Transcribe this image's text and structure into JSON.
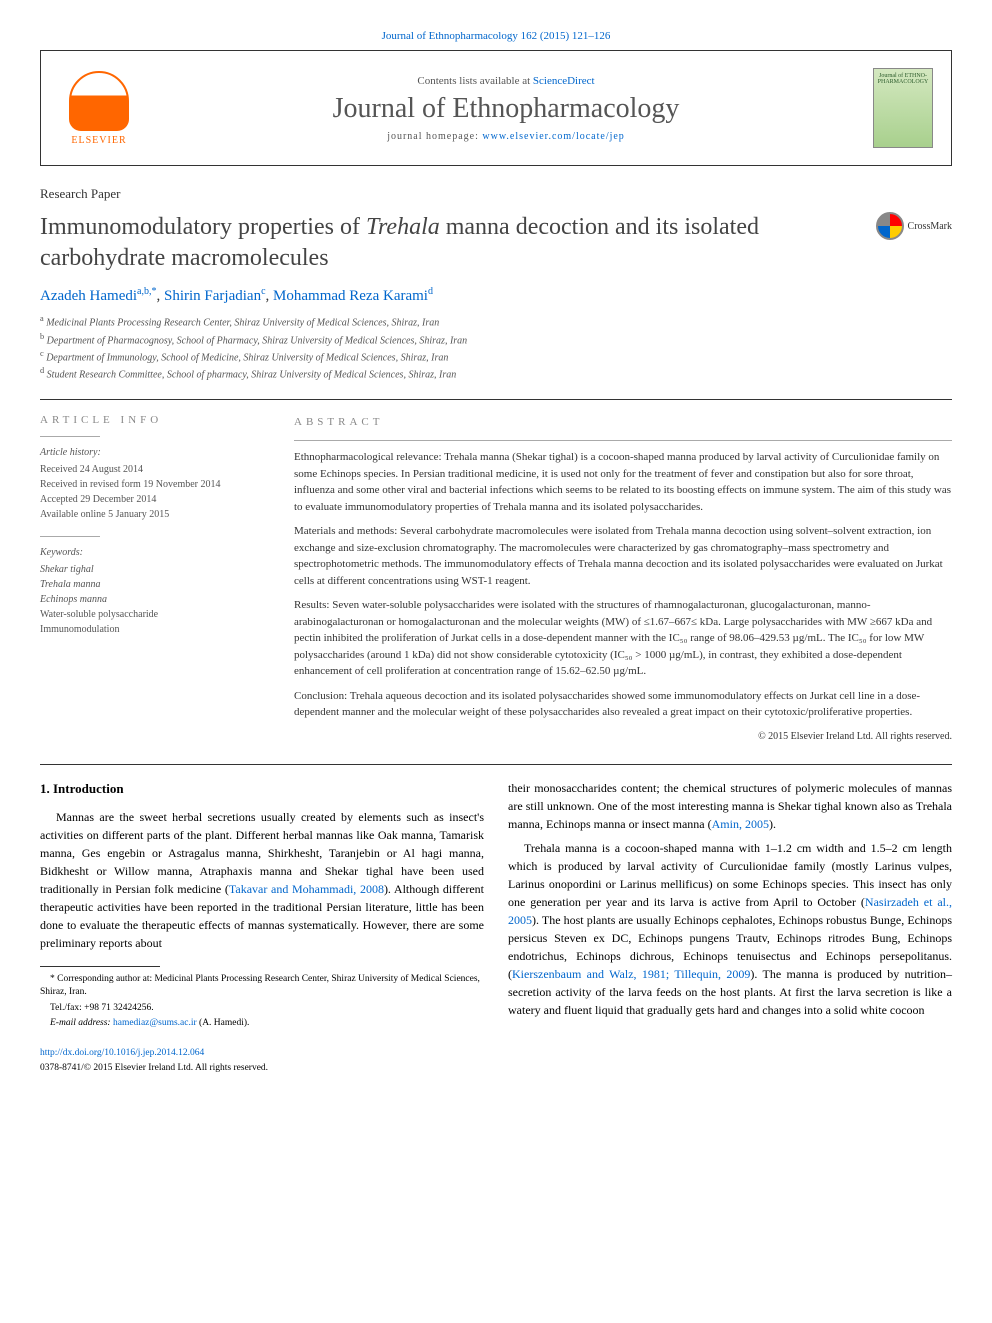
{
  "top_citation": "Journal of Ethnopharmacology 162 (2015) 121–126",
  "header": {
    "contents_prefix": "Contents lists available at ",
    "contents_link": "ScienceDirect",
    "journal_name": "Journal of Ethnopharmacology",
    "homepage_prefix": "journal homepage: ",
    "homepage_link": "www.elsevier.com/locate/jep",
    "publisher": "ELSEVIER",
    "cover_text": "Journal of ETHNO-PHARMACOLOGY"
  },
  "paper_type": "Research Paper",
  "title_html": "Immunomodulatory properties of <em>Trehala</em> manna decoction and its isolated carbohydrate macromolecules",
  "crossmark_label": "CrossMark",
  "authors": {
    "a1_name": "Azadeh Hamedi",
    "a1_sup": "a,b,*",
    "a2_name": "Shirin Farjadian",
    "a2_sup": "c",
    "a3_name": "Mohammad Reza Karami",
    "a3_sup": "d"
  },
  "affiliations": {
    "a": "Medicinal Plants Processing Research Center, Shiraz University of Medical Sciences, Shiraz, Iran",
    "b": "Department of Pharmacognosy, School of Pharmacy, Shiraz University of Medical Sciences, Shiraz, Iran",
    "c": "Department of Immunology, School of Medicine, Shiraz University of Medical Sciences, Shiraz, Iran",
    "d": "Student Research Committee, School of pharmacy, Shiraz University of Medical Sciences, Shiraz, Iran"
  },
  "article_info": {
    "label": "ARTICLE INFO",
    "history_heading": "Article history:",
    "received": "Received 24 August 2014",
    "revised": "Received in revised form 19 November 2014",
    "accepted": "Accepted 29 December 2014",
    "online": "Available online 5 January 2015",
    "keywords_heading": "Keywords:",
    "keywords": [
      "Shekar tighal",
      "Trehala manna",
      "Echinops manna",
      "Water-soluble polysaccharide",
      "Immunomodulation"
    ]
  },
  "abstract": {
    "label": "ABSTRACT",
    "p1": "Ethnopharmacological relevance: Trehala manna (Shekar tighal) is a cocoon-shaped manna produced by larval activity of Curculionidae family on some Echinops species. In Persian traditional medicine, it is used not only for the treatment of fever and constipation but also for sore throat, influenza and some other viral and bacterial infections which seems to be related to its boosting effects on immune system. The aim of this study was to evaluate immunomodulatory properties of Trehala manna and its isolated polysaccharides.",
    "p2": "Materials and methods: Several carbohydrate macromolecules were isolated from Trehala manna decoction using solvent–solvent extraction, ion exchange and size-exclusion chromatography. The macromolecules were characterized by gas chromatography–mass spectrometry and spectrophotometric methods. The immunomodulatory effects of Trehala manna decoction and its isolated polysaccharides were evaluated on Jurkat cells at different concentrations using WST-1 reagent.",
    "p3": "Results: Seven water-soluble polysaccharides were isolated with the structures of rhamnogalacturonan, glucogalacturonan, manno-arabinogalacturonan or homogalacturonan and the molecular weights (MW) of ≤1.67–667≤ kDa. Large polysaccharides with MW ≥667 kDa and pectin inhibited the proliferation of Jurkat cells in a dose-dependent manner with the IC₅₀ range of 98.06–429.53 µg/mL. The IC₅₀ for low MW polysaccharides (around 1 kDa) did not show considerable cytotoxicity (IC₅₀ > 1000 µg/mL), in contrast, they exhibited a dose-dependent enhancement of cell proliferation at concentration range of 15.62–62.50 µg/mL.",
    "p4": "Conclusion: Trehala aqueous decoction and its isolated polysaccharides showed some immunomodulatory effects on Jurkat cell line in a dose-dependent manner and the molecular weight of these polysaccharides also revealed a great impact on their cytotoxic/proliferative properties.",
    "copyright": "© 2015 Elsevier Ireland Ltd. All rights reserved."
  },
  "body": {
    "intro_heading": "1. Introduction",
    "left_p1_pre": "Mannas are the sweet herbal secretions usually created by elements such as insect's activities on different parts of the plant. Different herbal mannas like Oak manna, Tamarisk manna, Ges engebin or Astragalus manna, Shirkhesht, Taranjebin or Al hagi manna, Bidkhesht or Willow manna, Atraphaxis manna and Shekar tighal have been used traditionally in Persian folk medicine (",
    "left_p1_link": "Takavar and Mohammadi, 2008",
    "left_p1_post": "). Although different therapeutic activities have been reported in the traditional Persian literature, little has been done to evaluate the therapeutic effects of mannas systematically. However, there are some preliminary reports about",
    "right_p1_pre": "their monosaccharides content; the chemical structures of polymeric molecules of mannas are still unknown. One of the most interesting manna is Shekar tighal known also as Trehala manna, Echinops manna or insect manna (",
    "right_p1_link": "Amin, 2005",
    "right_p1_post": ").",
    "right_p2_pre": "Trehala manna is a cocoon-shaped manna with 1–1.2 cm width and 1.5–2 cm length which is produced by larval activity of Curculionidae family (mostly Larinus vulpes, Larinus onopordini or Larinus mellificus) on some Echinops species. This insect has only one generation per year and its larva is active from April to October (",
    "right_p2_link1": "Nasirzadeh et al., 2005",
    "right_p2_mid": "). The host plants are usually Echinops cephalotes, Echinops robustus Bunge, Echinops persicus Steven ex DC, Echinops pungens Trautv, Echinops ritrodes Bung, Echinops endotrichus, Echinops dichrous, Echinops tenuisectus and Echinops persepolitanus. (",
    "right_p2_link2": "Kierszenbaum and Walz, 1981; Tillequin, 2009",
    "right_p2_post": "). The manna is produced by nutrition–secretion activity of the larva feeds on the host plants. At first the larva secretion is like a watery and fluent liquid that gradually gets hard and changes into a solid white cocoon"
  },
  "footnotes": {
    "corr": "* Corresponding author at: Medicinal Plants Processing Research Center, Shiraz University of Medical Sciences, Shiraz, Iran.",
    "tel": "Tel./fax: +98 71 32424256.",
    "email_label": "E-mail address: ",
    "email": "hamediaz@sums.ac.ir",
    "email_suffix": " (A. Hamedi)."
  },
  "doi": {
    "link": "http://dx.doi.org/10.1016/j.jep.2014.12.064",
    "issn_line": "0378-8741/© 2015 Elsevier Ireland Ltd. All rights reserved."
  },
  "colors": {
    "link": "#0066cc",
    "elsevier_orange": "#ff6600",
    "text_gray": "#555555",
    "border": "#333333"
  }
}
